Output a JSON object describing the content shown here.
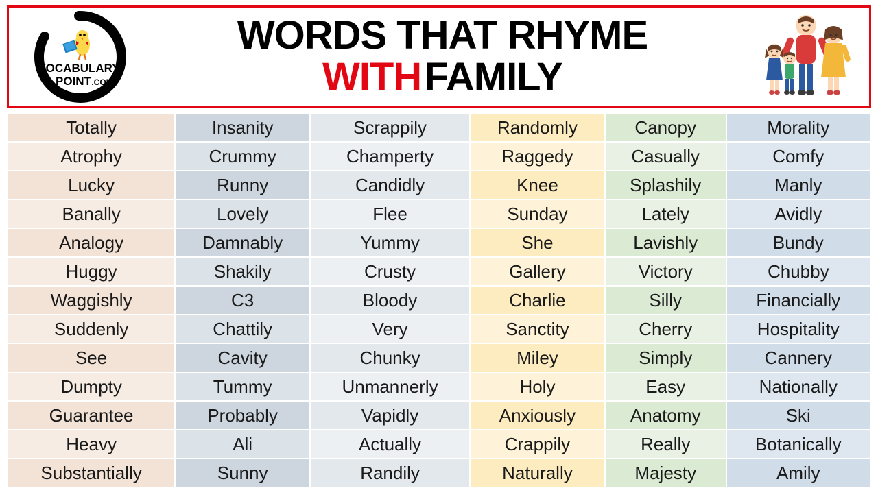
{
  "header": {
    "title_line1": "WORDS THAT RHYME",
    "title_with": "WITH",
    "title_family": "FAMILY",
    "logo_text_top": "VOCABULARY",
    "logo_text_mid": "POINT",
    "logo_text_bot": ".COM"
  },
  "table": {
    "column_colors": [
      "#f3e3d7",
      "#cdd6df",
      "#e3e8ec",
      "#fdecc0",
      "#dbead3",
      "#d0dce8"
    ],
    "column_colors_alt": [
      "#f7ece3",
      "#dbe2e8",
      "#edf0f3",
      "#fef3d8",
      "#e8f1e3",
      "#dee7ef"
    ],
    "rows": [
      [
        "Totally",
        "Insanity",
        "Scrappily",
        "Randomly",
        "Canopy",
        "Morality"
      ],
      [
        "Atrophy",
        "Crummy",
        "Champerty",
        "Raggedy",
        "Casually",
        "Comfy"
      ],
      [
        "Lucky",
        "Runny",
        "Candidly",
        "Knee",
        "Splashily",
        "Manly"
      ],
      [
        "Banally",
        "Lovely",
        "Flee",
        "Sunday",
        "Lately",
        "Avidly"
      ],
      [
        "Analogy",
        "Damnably",
        "Yummy",
        "She",
        "Lavishly",
        "Bundy"
      ],
      [
        "Huggy",
        "Shakily",
        "Crusty",
        "Gallery",
        "Victory",
        "Chubby"
      ],
      [
        "Waggishly",
        "C3",
        "Bloody",
        "Charlie",
        "Silly",
        "Financially"
      ],
      [
        "Suddenly",
        "Chattily",
        "Very",
        "Sanctity",
        "Cherry",
        "Hospitality"
      ],
      [
        "See",
        "Cavity",
        "Chunky",
        "Miley",
        "Simply",
        "Cannery"
      ],
      [
        "Dumpty",
        "Tummy",
        "Unmannerly",
        "Holy",
        "Easy",
        "Nationally"
      ],
      [
        "Guarantee",
        "Probably",
        "Vapidly",
        "Anxiously",
        "Anatomy",
        "Ski"
      ],
      [
        "Heavy",
        "Ali",
        "Actually",
        "Crappily",
        "Really",
        "Botanically"
      ],
      [
        "Substantially",
        "Sunny",
        "Randily",
        "Naturally",
        "Majesty",
        "Amily"
      ]
    ]
  }
}
